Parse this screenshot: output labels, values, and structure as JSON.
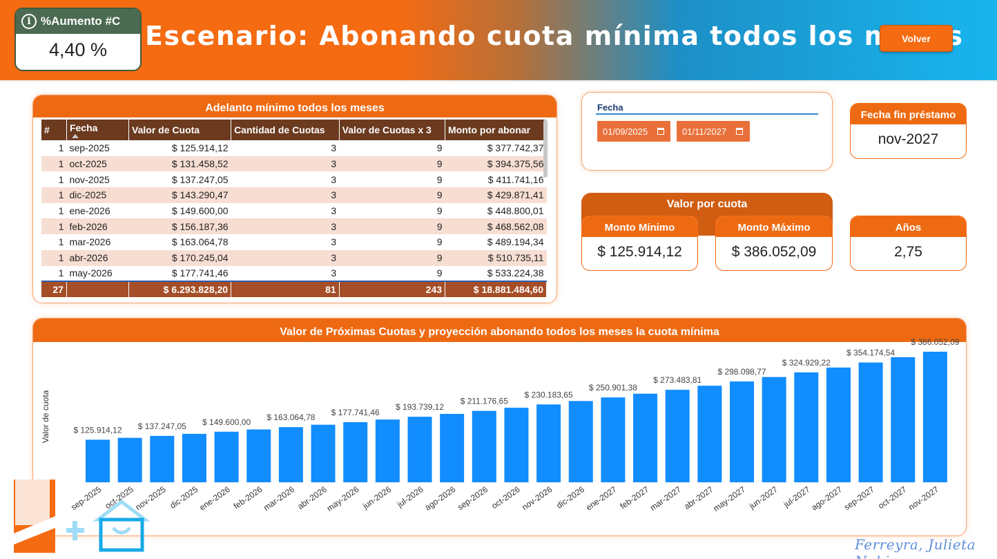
{
  "header": {
    "kpi_label": "%Aumento #C",
    "kpi_value": "4,40 %",
    "title": "Escenario: Abonando cuota mínima todos los meses",
    "back_label": "Volver"
  },
  "table": {
    "title": "Adelanto mínimo todos los meses",
    "columns": [
      "#",
      "Fecha",
      "Valor de Cuota",
      "Cantidad de Cuotas",
      "Valor de Cuotas x 3",
      "Monto por abonar"
    ],
    "rows": [
      [
        "1",
        "sep-2025",
        "$ 125.914,12",
        "3",
        "9",
        "$ 377.742,37"
      ],
      [
        "1",
        "oct-2025",
        "$ 131.458,52",
        "3",
        "9",
        "$ 394.375,56"
      ],
      [
        "1",
        "nov-2025",
        "$ 137.247,05",
        "3",
        "9",
        "$ 411.741,16"
      ],
      [
        "1",
        "dic-2025",
        "$ 143.290,47",
        "3",
        "9",
        "$ 429.871,41"
      ],
      [
        "1",
        "ene-2026",
        "$ 149.600,00",
        "3",
        "9",
        "$ 448.800,01"
      ],
      [
        "1",
        "feb-2026",
        "$ 156.187,36",
        "3",
        "9",
        "$ 468.562,08"
      ],
      [
        "1",
        "mar-2026",
        "$ 163.064,78",
        "3",
        "9",
        "$ 489.194,34"
      ],
      [
        "1",
        "abr-2026",
        "$ 170.245,04",
        "3",
        "9",
        "$ 510.735,11"
      ],
      [
        "1",
        "may-2026",
        "$ 177.741,46",
        "3",
        "9",
        "$ 533.224,38"
      ]
    ],
    "totals": [
      "27",
      "",
      "$ 6.293.828,20",
      "81",
      "243",
      "$ 18.881.484,60"
    ]
  },
  "slicer": {
    "label": "Fecha",
    "start": "01/09/2025",
    "end": "01/11/2027"
  },
  "fecha_fin": {
    "label": "Fecha fin préstamo",
    "value": "nov-2027"
  },
  "valor_por_cuota": {
    "title": "Valor por cuota",
    "min_label": "Monto Mínimo",
    "min_value": "$ 125.914,12",
    "max_label": "Monto Máximo",
    "max_value": "$ 386.052,09"
  },
  "anios": {
    "label": "Años",
    "value": "2,75"
  },
  "signature": "Ferreyra, Julieta Nahir",
  "colors": {
    "orange": "#f46b12",
    "bar": "#118dff",
    "header_dark": "#6b3a1f",
    "total_row": "#a54e27"
  },
  "chart_data": {
    "type": "bar",
    "title": "Valor de Próximas Cuotas y proyección abonando todos los meses la cuota mínima",
    "ylabel": "Valor de cuota",
    "xlabel": "",
    "categories": [
      "sep-2025",
      "oct-2025",
      "nov-2025",
      "dic-2025",
      "ene-2026",
      "feb-2026",
      "mar-2026",
      "abr-2026",
      "may-2026",
      "jun-2026",
      "jul-2026",
      "ago-2026",
      "sep-2026",
      "oct-2026",
      "nov-2026",
      "dic-2026",
      "ene-2027",
      "feb-2027",
      "mar-2027",
      "abr-2027",
      "may-2027",
      "jun-2027",
      "jul-2027",
      "ago-2027",
      "sep-2027",
      "oct-2027",
      "nov-2027"
    ],
    "values": [
      125914.12,
      131458.52,
      137247.05,
      143290.47,
      149600.0,
      156187.36,
      163064.78,
      170245.04,
      177741.46,
      185567.98,
      193739.12,
      202270.11,
      211176.65,
      220475.01,
      230183.65,
      240319.74,
      250901.38,
      261948.76,
      273483.81,
      285526.53,
      298098.77,
      311224.91,
      324929.22,
      339237.09,
      354174.54,
      369769.32,
      386052.09
    ],
    "data_labels": [
      "$ 125.914,12",
      "",
      "$ 137.247,05",
      "",
      "$ 149.600,00",
      "",
      "$ 163.064,78",
      "",
      "$ 177.741,46",
      "",
      "$ 193.739,12",
      "",
      "$ 211.176,65",
      "",
      "$ 230.183,65",
      "",
      "$ 250.901,38",
      "",
      "$ 273.483,81",
      "",
      "$ 298.098,77",
      "",
      "$ 324.929,22",
      "",
      "$ 354.174,54",
      "",
      "$ 386.052,09"
    ],
    "ylim": [
      0,
      386052.09
    ],
    "grid": false
  }
}
